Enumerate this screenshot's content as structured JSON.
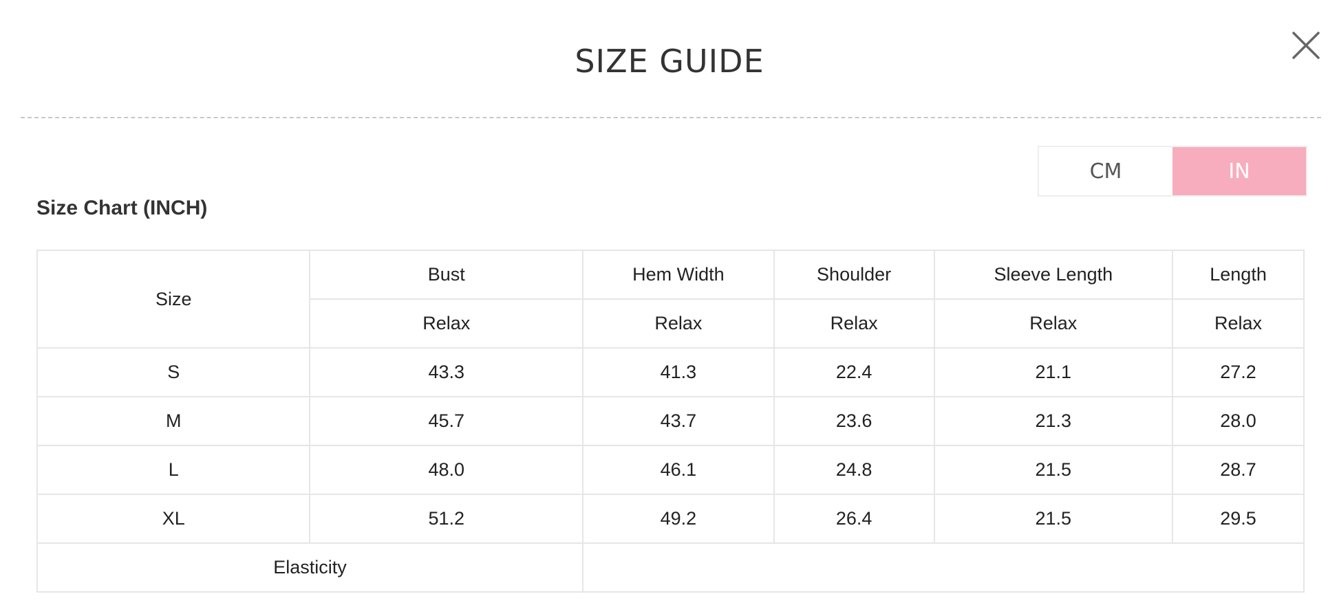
{
  "header": {
    "title": "SIZE GUIDE",
    "close_icon": "close-icon"
  },
  "unit_toggle": {
    "cm_label": "CM",
    "in_label": "IN",
    "selected": "IN",
    "accent_color": "#f7adbd"
  },
  "chart_heading": "Size Chart (INCH)",
  "table": {
    "size_header": "Size",
    "columns": [
      {
        "name": "Bust",
        "sub": "Relax"
      },
      {
        "name": "Hem Width",
        "sub": "Relax"
      },
      {
        "name": "Shoulder",
        "sub": "Relax"
      },
      {
        "name": "Sleeve Length",
        "sub": "Relax"
      },
      {
        "name": "Length",
        "sub": "Relax"
      }
    ],
    "rows": [
      {
        "size": "S",
        "values": [
          "43.3",
          "41.3",
          "22.4",
          "21.1",
          "27.2"
        ]
      },
      {
        "size": "M",
        "values": [
          "45.7",
          "43.7",
          "23.6",
          "21.3",
          "28.0"
        ]
      },
      {
        "size": "L",
        "values": [
          "48.0",
          "46.1",
          "24.8",
          "21.5",
          "28.7"
        ]
      },
      {
        "size": "XL",
        "values": [
          "51.2",
          "49.2",
          "26.4",
          "21.5",
          "29.5"
        ]
      }
    ],
    "elasticity_label": "Elasticity",
    "elasticity_value": ""
  }
}
